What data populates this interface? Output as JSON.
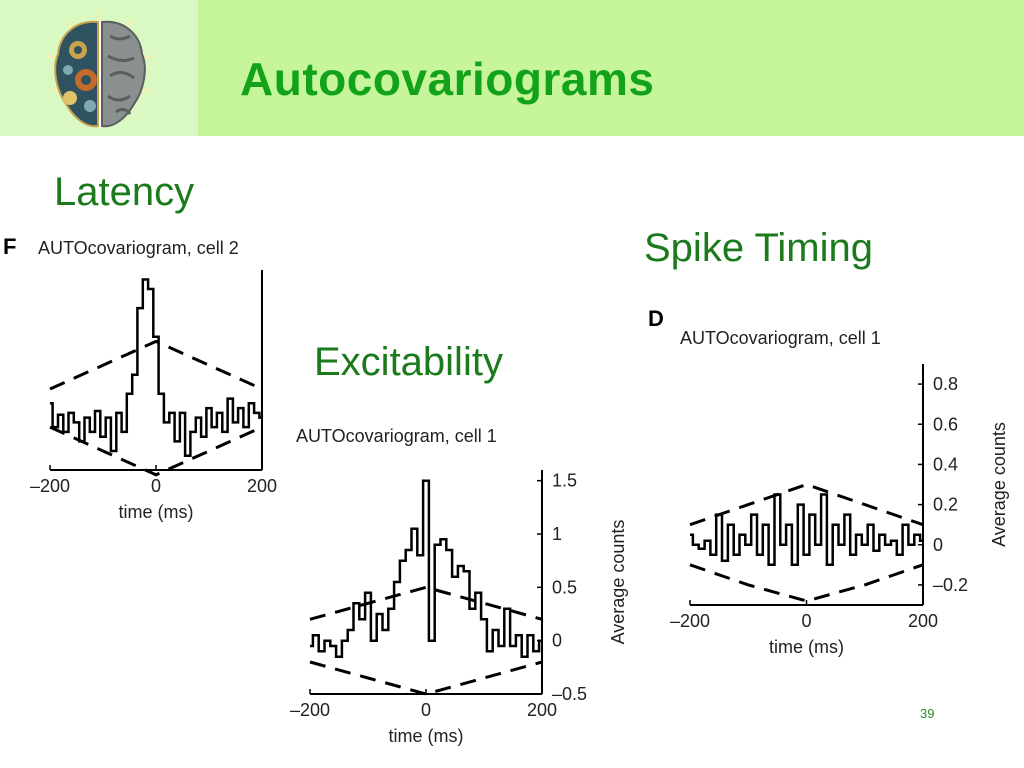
{
  "slide": {
    "title": "Autocovariograms",
    "page_number": "39",
    "colors": {
      "header": "#c6f59b",
      "logo_box": "#d9f8c2",
      "title": "#13a31b",
      "labels": "#1b7a1b"
    }
  },
  "labels": {
    "latency": "Latency",
    "excitability": "Excitability",
    "spike_timing": "Spike Timing"
  },
  "chart_data": [
    {
      "id": "F",
      "type": "line",
      "panel_letter": "F",
      "title": "AUTOcovariogram, cell 2",
      "xlabel": "time (ms)",
      "ylabel": "",
      "xlim": [
        -200,
        200
      ],
      "ylim": [
        -0.5,
        1.6
      ],
      "xticks": [
        -200,
        0,
        200
      ],
      "xtick_labels": [
        "–200",
        "0",
        "200"
      ],
      "yticks": [],
      "ytick_labels": [],
      "y_axis_side": "right",
      "series": [
        {
          "style": "step",
          "x": [
            -200,
            -190,
            -180,
            -170,
            -160,
            -150,
            -140,
            -130,
            -120,
            -110,
            -100,
            -90,
            -80,
            -70,
            -60,
            -50,
            -40,
            -30,
            -20,
            -10,
            0,
            10,
            20,
            30,
            40,
            50,
            60,
            70,
            80,
            90,
            100,
            110,
            120,
            130,
            140,
            150,
            160,
            170,
            180,
            190,
            200
          ],
          "y": [
            0.2,
            -0.05,
            0.08,
            -0.1,
            0.1,
            0.0,
            -0.2,
            0.05,
            -0.1,
            0.12,
            -0.15,
            0.05,
            -0.3,
            0.1,
            -0.1,
            0.3,
            0.5,
            1.2,
            1.5,
            1.4,
            0.9,
            0.3,
            0.0,
            0.1,
            -0.2,
            0.1,
            -0.35,
            -0.1,
            0.05,
            -0.15,
            0.15,
            -0.05,
            0.1,
            -0.1,
            0.25,
            0.0,
            0.15,
            -0.05,
            0.2,
            0.1,
            0.05
          ]
        },
        {
          "style": "dashed",
          "x": [
            -200,
            -100,
            0,
            100,
            200
          ],
          "y": [
            0.35,
            0.6,
            0.85,
            0.6,
            0.35
          ]
        },
        {
          "style": "dashed",
          "x": [
            -200,
            -100,
            0,
            100,
            200
          ],
          "y": [
            -0.05,
            -0.3,
            -0.55,
            -0.3,
            -0.05
          ]
        }
      ]
    },
    {
      "id": "excitability",
      "type": "line",
      "panel_letter": "",
      "title": "AUTOcovariogram, cell 1",
      "xlabel": "time (ms)",
      "ylabel": "Average counts",
      "xlim": [
        -200,
        200
      ],
      "ylim": [
        -0.5,
        1.6
      ],
      "xticks": [
        -200,
        0,
        200
      ],
      "xtick_labels": [
        "–200",
        "0",
        "200"
      ],
      "yticks": [
        1.5,
        1,
        0.5,
        0,
        -0.5
      ],
      "ytick_labels": [
        "1.5",
        "1",
        "0.5",
        "0",
        "–0.5"
      ],
      "y_axis_side": "right",
      "series": [
        {
          "style": "step",
          "x": [
            -200,
            -190,
            -180,
            -170,
            -160,
            -150,
            -140,
            -130,
            -120,
            -110,
            -100,
            -90,
            -80,
            -70,
            -60,
            -50,
            -40,
            -30,
            -20,
            -10,
            0,
            10,
            20,
            30,
            40,
            50,
            60,
            70,
            80,
            90,
            100,
            110,
            120,
            130,
            140,
            150,
            160,
            170,
            180,
            190,
            200
          ],
          "y": [
            -0.05,
            0.05,
            -0.1,
            0.0,
            -0.05,
            -0.15,
            0.0,
            0.1,
            0.35,
            0.2,
            0.45,
            0.0,
            0.25,
            0.1,
            0.3,
            0.55,
            0.75,
            0.85,
            1.05,
            0.8,
            1.5,
            0.0,
            0.9,
            0.95,
            0.85,
            0.6,
            0.7,
            0.65,
            0.3,
            0.45,
            0.2,
            -0.1,
            0.1,
            -0.05,
            0.3,
            -0.05,
            0.05,
            -0.15,
            0.05,
            -0.1,
            0.0
          ]
        },
        {
          "style": "dashed",
          "x": [
            -200,
            -100,
            0,
            100,
            200
          ],
          "y": [
            0.2,
            0.35,
            0.5,
            0.35,
            0.2
          ]
        },
        {
          "style": "dashed",
          "x": [
            -200,
            -100,
            0,
            100,
            200
          ],
          "y": [
            -0.2,
            -0.35,
            -0.5,
            -0.35,
            -0.2
          ]
        }
      ]
    },
    {
      "id": "D",
      "type": "line",
      "panel_letter": "D",
      "title": "AUTOcovariogram, cell 1",
      "xlabel": "time (ms)",
      "ylabel": "Average counts",
      "xlim": [
        -200,
        200
      ],
      "ylim": [
        -0.3,
        0.9
      ],
      "xticks": [
        -200,
        0,
        200
      ],
      "xtick_labels": [
        "–200",
        "0",
        "200"
      ],
      "yticks": [
        0.8,
        0.6,
        0.4,
        0.2,
        0,
        -0.2
      ],
      "ytick_labels": [
        "0.8",
        "0.6",
        "0.4",
        "0.2",
        "0",
        "–0.2"
      ],
      "y_axis_side": "right",
      "series": [
        {
          "style": "step",
          "x": [
            -200,
            -190,
            -180,
            -170,
            -160,
            -150,
            -140,
            -130,
            -120,
            -110,
            -100,
            -90,
            -80,
            -70,
            -60,
            -50,
            -40,
            -30,
            -20,
            -10,
            0,
            10,
            20,
            30,
            40,
            50,
            60,
            70,
            80,
            90,
            100,
            110,
            120,
            130,
            140,
            150,
            160,
            170,
            180,
            190,
            200
          ],
          "y": [
            0.05,
            0.0,
            -0.02,
            0.02,
            -0.05,
            0.15,
            -0.08,
            0.1,
            -0.05,
            0.05,
            0.0,
            0.15,
            -0.05,
            0.1,
            -0.1,
            0.25,
            0.0,
            0.1,
            -0.1,
            0.2,
            -0.05,
            0.15,
            0.0,
            0.25,
            -0.1,
            0.1,
            0.0,
            0.15,
            -0.05,
            0.05,
            0.0,
            0.1,
            -0.03,
            0.05,
            0.0,
            0.02,
            -0.05,
            0.1,
            0.0,
            0.05,
            0.02
          ]
        },
        {
          "style": "dashed",
          "x": [
            -200,
            -100,
            0,
            100,
            200
          ],
          "y": [
            0.1,
            0.2,
            0.3,
            0.2,
            0.1
          ]
        },
        {
          "style": "dashed",
          "x": [
            -200,
            -100,
            0,
            100,
            200
          ],
          "y": [
            -0.1,
            -0.2,
            -0.28,
            -0.2,
            -0.1
          ]
        }
      ]
    }
  ]
}
